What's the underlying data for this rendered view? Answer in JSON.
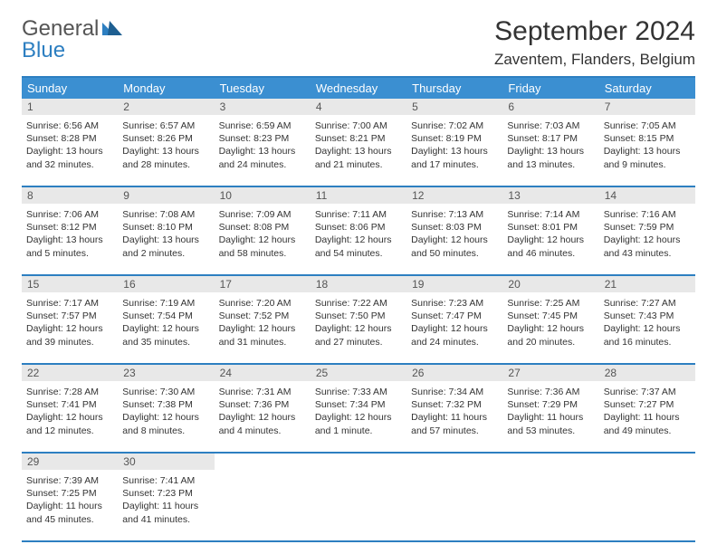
{
  "logo": {
    "general": "General",
    "blue": "Blue"
  },
  "title": "September 2024",
  "location": "Zaventem, Flanders, Belgium",
  "colors": {
    "accent": "#2d7fc1",
    "header_bg": "#3b8fd1",
    "daynum_bg": "#e8e8e8",
    "text": "#333333"
  },
  "weekdays": [
    "Sunday",
    "Monday",
    "Tuesday",
    "Wednesday",
    "Thursday",
    "Friday",
    "Saturday"
  ],
  "weeks": [
    [
      {
        "n": "1",
        "sr": "6:56 AM",
        "ss": "8:28 PM",
        "dl": "13 hours and 32 minutes."
      },
      {
        "n": "2",
        "sr": "6:57 AM",
        "ss": "8:26 PM",
        "dl": "13 hours and 28 minutes."
      },
      {
        "n": "3",
        "sr": "6:59 AM",
        "ss": "8:23 PM",
        "dl": "13 hours and 24 minutes."
      },
      {
        "n": "4",
        "sr": "7:00 AM",
        "ss": "8:21 PM",
        "dl": "13 hours and 21 minutes."
      },
      {
        "n": "5",
        "sr": "7:02 AM",
        "ss": "8:19 PM",
        "dl": "13 hours and 17 minutes."
      },
      {
        "n": "6",
        "sr": "7:03 AM",
        "ss": "8:17 PM",
        "dl": "13 hours and 13 minutes."
      },
      {
        "n": "7",
        "sr": "7:05 AM",
        "ss": "8:15 PM",
        "dl": "13 hours and 9 minutes."
      }
    ],
    [
      {
        "n": "8",
        "sr": "7:06 AM",
        "ss": "8:12 PM",
        "dl": "13 hours and 5 minutes."
      },
      {
        "n": "9",
        "sr": "7:08 AM",
        "ss": "8:10 PM",
        "dl": "13 hours and 2 minutes."
      },
      {
        "n": "10",
        "sr": "7:09 AM",
        "ss": "8:08 PM",
        "dl": "12 hours and 58 minutes."
      },
      {
        "n": "11",
        "sr": "7:11 AM",
        "ss": "8:06 PM",
        "dl": "12 hours and 54 minutes."
      },
      {
        "n": "12",
        "sr": "7:13 AM",
        "ss": "8:03 PM",
        "dl": "12 hours and 50 minutes."
      },
      {
        "n": "13",
        "sr": "7:14 AM",
        "ss": "8:01 PM",
        "dl": "12 hours and 46 minutes."
      },
      {
        "n": "14",
        "sr": "7:16 AM",
        "ss": "7:59 PM",
        "dl": "12 hours and 43 minutes."
      }
    ],
    [
      {
        "n": "15",
        "sr": "7:17 AM",
        "ss": "7:57 PM",
        "dl": "12 hours and 39 minutes."
      },
      {
        "n": "16",
        "sr": "7:19 AM",
        "ss": "7:54 PM",
        "dl": "12 hours and 35 minutes."
      },
      {
        "n": "17",
        "sr": "7:20 AM",
        "ss": "7:52 PM",
        "dl": "12 hours and 31 minutes."
      },
      {
        "n": "18",
        "sr": "7:22 AM",
        "ss": "7:50 PM",
        "dl": "12 hours and 27 minutes."
      },
      {
        "n": "19",
        "sr": "7:23 AM",
        "ss": "7:47 PM",
        "dl": "12 hours and 24 minutes."
      },
      {
        "n": "20",
        "sr": "7:25 AM",
        "ss": "7:45 PM",
        "dl": "12 hours and 20 minutes."
      },
      {
        "n": "21",
        "sr": "7:27 AM",
        "ss": "7:43 PM",
        "dl": "12 hours and 16 minutes."
      }
    ],
    [
      {
        "n": "22",
        "sr": "7:28 AM",
        "ss": "7:41 PM",
        "dl": "12 hours and 12 minutes."
      },
      {
        "n": "23",
        "sr": "7:30 AM",
        "ss": "7:38 PM",
        "dl": "12 hours and 8 minutes."
      },
      {
        "n": "24",
        "sr": "7:31 AM",
        "ss": "7:36 PM",
        "dl": "12 hours and 4 minutes."
      },
      {
        "n": "25",
        "sr": "7:33 AM",
        "ss": "7:34 PM",
        "dl": "12 hours and 1 minute."
      },
      {
        "n": "26",
        "sr": "7:34 AM",
        "ss": "7:32 PM",
        "dl": "11 hours and 57 minutes."
      },
      {
        "n": "27",
        "sr": "7:36 AM",
        "ss": "7:29 PM",
        "dl": "11 hours and 53 minutes."
      },
      {
        "n": "28",
        "sr": "7:37 AM",
        "ss": "7:27 PM",
        "dl": "11 hours and 49 minutes."
      }
    ],
    [
      {
        "n": "29",
        "sr": "7:39 AM",
        "ss": "7:25 PM",
        "dl": "11 hours and 45 minutes."
      },
      {
        "n": "30",
        "sr": "7:41 AM",
        "ss": "7:23 PM",
        "dl": "11 hours and 41 minutes."
      },
      null,
      null,
      null,
      null,
      null
    ]
  ],
  "labels": {
    "sunrise": "Sunrise:",
    "sunset": "Sunset:",
    "daylight": "Daylight:"
  }
}
